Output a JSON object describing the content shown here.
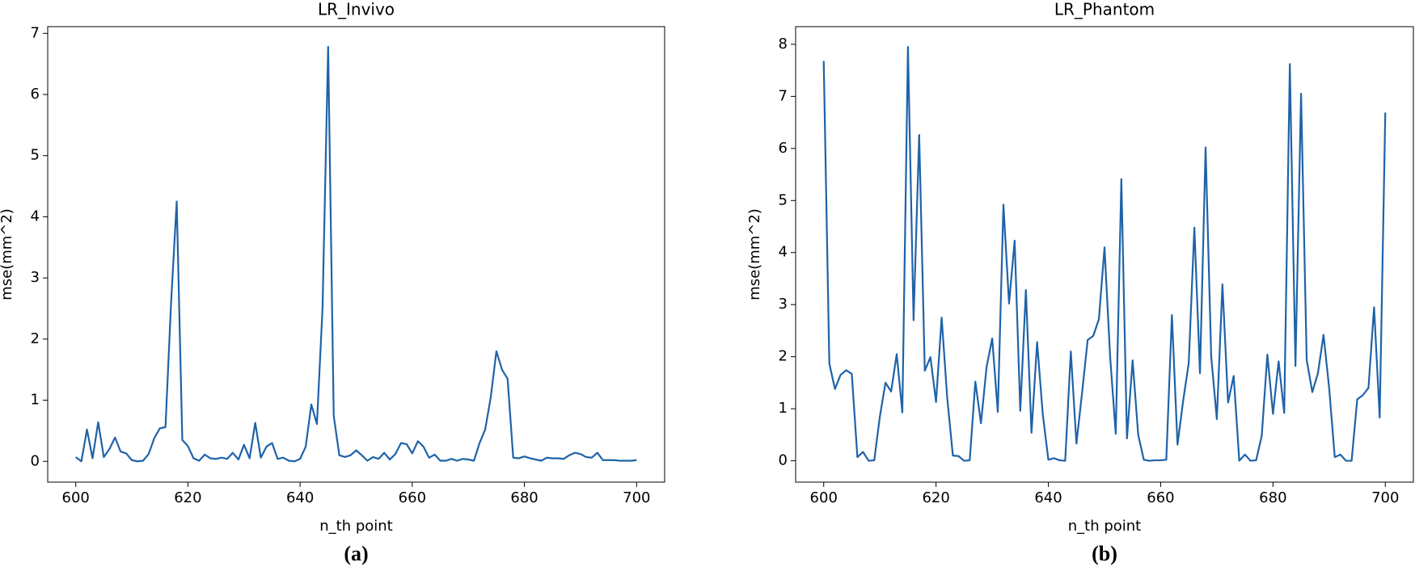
{
  "chart_data": [
    {
      "type": "line",
      "title": "LR_Invivo",
      "x_label": "n_th point",
      "y_label": "mse(mm^2)",
      "caption": "(a)",
      "x": [
        600,
        601,
        602,
        603,
        604,
        605,
        606,
        607,
        608,
        609,
        610,
        611,
        612,
        613,
        614,
        615,
        616,
        617,
        618,
        619,
        620,
        621,
        622,
        623,
        624,
        625,
        626,
        627,
        628,
        629,
        630,
        631,
        632,
        633,
        634,
        635,
        636,
        637,
        638,
        639,
        640,
        641,
        642,
        643,
        644,
        645,
        646,
        647,
        648,
        649,
        650,
        651,
        652,
        653,
        654,
        655,
        656,
        657,
        658,
        659,
        660,
        661,
        662,
        663,
        664,
        665,
        666,
        667,
        668,
        669,
        670,
        671,
        672,
        673,
        674,
        675,
        676,
        677,
        678,
        679,
        680,
        681,
        682,
        683,
        684,
        685,
        686,
        687,
        688,
        689,
        690,
        691,
        692,
        693,
        694,
        695,
        696,
        697,
        698,
        699,
        700
      ],
      "series": [
        {
          "name": "LR_Invivo",
          "color": "#1f63a8",
          "values": [
            0.07,
            0.0,
            0.52,
            0.05,
            0.64,
            0.07,
            0.2,
            0.39,
            0.16,
            0.13,
            0.02,
            0.0,
            0.01,
            0.12,
            0.38,
            0.54,
            0.56,
            2.6,
            4.25,
            0.35,
            0.25,
            0.05,
            0.01,
            0.11,
            0.05,
            0.04,
            0.06,
            0.04,
            0.14,
            0.03,
            0.27,
            0.05,
            0.63,
            0.06,
            0.24,
            0.3,
            0.04,
            0.06,
            0.01,
            0.0,
            0.04,
            0.24,
            0.93,
            0.61,
            2.5,
            6.78,
            0.74,
            0.1,
            0.07,
            0.1,
            0.18,
            0.1,
            0.01,
            0.07,
            0.04,
            0.14,
            0.03,
            0.12,
            0.3,
            0.28,
            0.13,
            0.33,
            0.24,
            0.06,
            0.11,
            0.01,
            0.01,
            0.04,
            0.01,
            0.04,
            0.03,
            0.01,
            0.3,
            0.52,
            1.05,
            1.8,
            1.5,
            1.35,
            0.06,
            0.05,
            0.08,
            0.05,
            0.03,
            0.01,
            0.06,
            0.05,
            0.05,
            0.04,
            0.1,
            0.14,
            0.12,
            0.07,
            0.06,
            0.14,
            0.02,
            0.02,
            0.02,
            0.01,
            0.01,
            0.01,
            0.02
          ]
        }
      ],
      "xlim": [
        595,
        705
      ],
      "xticks": [
        600,
        620,
        640,
        660,
        680,
        700
      ],
      "ylim": [
        -0.34,
        7.11
      ],
      "yticks": [
        0,
        1,
        2,
        3,
        4,
        5,
        6,
        7
      ],
      "grid": false
    },
    {
      "type": "line",
      "title": "LR_Phantom",
      "x_label": "n_th point",
      "y_label": "mse(mm^2)",
      "caption": "(b)",
      "x": [
        600,
        601,
        602,
        603,
        604,
        605,
        606,
        607,
        608,
        609,
        610,
        611,
        612,
        613,
        614,
        615,
        616,
        617,
        618,
        619,
        620,
        621,
        622,
        623,
        624,
        625,
        626,
        627,
        628,
        629,
        630,
        631,
        632,
        633,
        634,
        635,
        636,
        637,
        638,
        639,
        640,
        641,
        642,
        643,
        644,
        645,
        646,
        647,
        648,
        649,
        650,
        651,
        652,
        653,
        654,
        655,
        656,
        657,
        658,
        659,
        660,
        661,
        662,
        663,
        664,
        665,
        666,
        667,
        668,
        669,
        670,
        671,
        672,
        673,
        674,
        675,
        676,
        677,
        678,
        679,
        680,
        681,
        682,
        683,
        684,
        685,
        686,
        687,
        688,
        689,
        690,
        691,
        692,
        693,
        694,
        695,
        696,
        697,
        698,
        699,
        700
      ],
      "series": [
        {
          "name": "LR_Phantom",
          "color": "#1f63a8",
          "values": [
            7.68,
            1.87,
            1.38,
            1.65,
            1.74,
            1.67,
            0.07,
            0.17,
            0.0,
            0.01,
            0.85,
            1.5,
            1.33,
            2.05,
            0.93,
            7.95,
            2.7,
            6.26,
            1.73,
            1.99,
            1.13,
            2.75,
            1.2,
            0.1,
            0.09,
            0.0,
            0.01,
            1.52,
            0.72,
            1.8,
            2.35,
            0.94,
            4.92,
            3.02,
            4.23,
            0.96,
            3.28,
            0.54,
            2.28,
            0.9,
            0.02,
            0.05,
            0.01,
            0.0,
            2.1,
            0.33,
            1.3,
            2.32,
            2.4,
            2.72,
            4.1,
            2.0,
            0.52,
            5.41,
            0.43,
            1.93,
            0.5,
            0.02,
            0.0,
            0.01,
            0.01,
            0.02,
            2.8,
            0.31,
            1.15,
            1.88,
            4.48,
            1.68,
            6.02,
            2.0,
            0.8,
            3.39,
            1.12,
            1.63,
            0.0,
            0.12,
            0.0,
            0.01,
            0.48,
            2.04,
            0.9,
            1.91,
            0.92,
            7.62,
            1.82,
            7.05,
            1.94,
            1.32,
            1.68,
            2.42,
            1.4,
            0.07,
            0.12,
            0.0,
            0.0,
            1.18,
            1.26,
            1.4,
            2.95,
            0.83,
            6.69
          ]
        }
      ],
      "xlim": [
        595,
        705
      ],
      "xticks": [
        600,
        620,
        640,
        660,
        680,
        700
      ],
      "ylim": [
        -0.41,
        8.34
      ],
      "yticks": [
        0,
        1,
        2,
        3,
        4,
        5,
        6,
        7,
        8
      ],
      "grid": false
    }
  ]
}
